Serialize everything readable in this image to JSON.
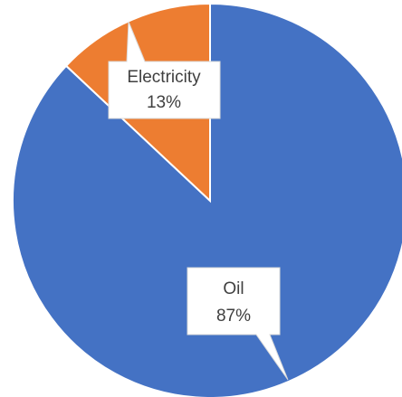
{
  "chart_data": {
    "type": "pie",
    "title": "",
    "slices": [
      {
        "name": "Oil",
        "value": 87,
        "percent_label": "87%",
        "color": "#4472C4"
      },
      {
        "name": "Electricity",
        "value": 13,
        "percent_label": "13%",
        "color": "#ED7D31"
      }
    ],
    "legend": "none",
    "labels": "callouts"
  }
}
